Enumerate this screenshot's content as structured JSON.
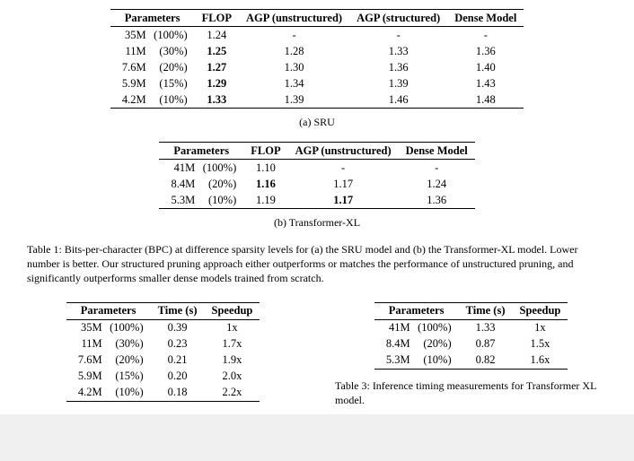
{
  "table1a": {
    "headers": [
      "Parameters",
      "FLOP",
      "AGP (unstructured)",
      "AGP (structured)",
      "Dense Model"
    ],
    "rows": [
      {
        "param": "35M",
        "pct": "(100%)",
        "flop": "1.24",
        "flop_b": false,
        "a_un": "-",
        "a_un_b": false,
        "a_st": "-",
        "a_st_b": false,
        "dense": "-",
        "dense_b": false
      },
      {
        "param": "11M",
        "pct": "(30%)",
        "flop": "1.25",
        "flop_b": true,
        "a_un": "1.28",
        "a_un_b": false,
        "a_st": "1.33",
        "a_st_b": false,
        "dense": "1.36",
        "dense_b": false
      },
      {
        "param": "7.6M",
        "pct": "(20%)",
        "flop": "1.27",
        "flop_b": true,
        "a_un": "1.30",
        "a_un_b": false,
        "a_st": "1.36",
        "a_st_b": false,
        "dense": "1.40",
        "dense_b": false
      },
      {
        "param": "5.9M",
        "pct": "(15%)",
        "flop": "1.29",
        "flop_b": true,
        "a_un": "1.34",
        "a_un_b": false,
        "a_st": "1.39",
        "a_st_b": false,
        "dense": "1.43",
        "dense_b": false
      },
      {
        "param": "4.2M",
        "pct": "(10%)",
        "flop": "1.33",
        "flop_b": true,
        "a_un": "1.39",
        "a_un_b": false,
        "a_st": "1.46",
        "a_st_b": false,
        "dense": "1.48",
        "dense_b": false
      }
    ],
    "subcaption": "(a)   SRU"
  },
  "table1b": {
    "headers": [
      "Parameters",
      "FLOP",
      "AGP (unstructured)",
      "Dense Model"
    ],
    "rows": [
      {
        "param": "41M",
        "pct": "(100%)",
        "flop": "1.10",
        "flop_b": false,
        "a_un": "-",
        "a_un_b": false,
        "dense": "-",
        "dense_b": false
      },
      {
        "param": "8.4M",
        "pct": "(20%)",
        "flop": "1.16",
        "flop_b": true,
        "a_un": "1.17",
        "a_un_b": false,
        "dense": "1.24",
        "dense_b": false
      },
      {
        "param": "5.3M",
        "pct": "(10%)",
        "flop": "1.19",
        "flop_b": false,
        "a_un": "1.17",
        "a_un_b": true,
        "dense": "1.36",
        "dense_b": false
      }
    ],
    "subcaption": "(b)   Transformer-XL"
  },
  "caption1": "Table 1: Bits-per-character (BPC) at difference sparsity levels for (a) the SRU model and (b) the Transformer-XL model. Lower number is better. Our structured pruning approach either outperforms or matches the performance of unstructured pruning, and significantly outperforms smaller dense models trained from scratch.",
  "table2": {
    "headers": [
      "Parameters",
      "Time (s)",
      "Speedup"
    ],
    "rows": [
      {
        "param": "35M",
        "pct": "(100%)",
        "time": "0.39",
        "spd": "1x"
      },
      {
        "param": "11M",
        "pct": "(30%)",
        "time": "0.23",
        "spd": "1.7x"
      },
      {
        "param": "7.6M",
        "pct": "(20%)",
        "time": "0.21",
        "spd": "1.9x"
      },
      {
        "param": "5.9M",
        "pct": "(15%)",
        "time": "0.20",
        "spd": "2.0x"
      },
      {
        "param": "4.2M",
        "pct": "(10%)",
        "time": "0.18",
        "spd": "2.2x"
      }
    ]
  },
  "table3": {
    "headers": [
      "Parameters",
      "Time (s)",
      "Speedup"
    ],
    "rows": [
      {
        "param": "41M",
        "pct": "(100%)",
        "time": "1.33",
        "spd": "1x"
      },
      {
        "param": "8.4M",
        "pct": "(20%)",
        "time": "0.87",
        "spd": "1.5x"
      },
      {
        "param": "5.3M",
        "pct": "(10%)",
        "time": "0.82",
        "spd": "1.6x"
      }
    ],
    "caption": "Table 3: Inference timing measurements for Transformer XL model."
  }
}
